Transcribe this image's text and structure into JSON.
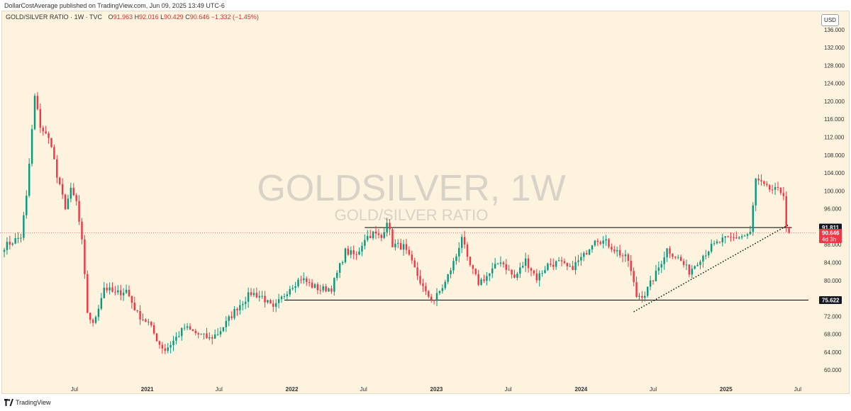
{
  "publisher_line": "DollarCostAverage published on TradingView.com, Jun 09, 2025 13:49 UTC-6",
  "legend": {
    "symbol_line": "GOLD/SILVER RATIO · 1W · TVC",
    "open_label": "O",
    "open": "91.963",
    "high_label": "H",
    "high": "92.016",
    "low_label": "L",
    "low": "90.429",
    "close_label": "C",
    "close": "90.646",
    "change": "−1.332 (−1.45%)"
  },
  "currency": "USD",
  "watermark": {
    "symbol": "GOLDSILVER, 1W",
    "description": "GOLD/SILVER RATIO"
  },
  "footer": {
    "brand": "TradingView"
  },
  "colors": {
    "up": "#089981",
    "down": "#f23645",
    "background": "#fdf3de",
    "line": "#000000",
    "label_dark": "#131722",
    "label_current": "#f23645"
  },
  "chart_data": {
    "type": "candlestick",
    "title": "GOLD/SILVER RATIO",
    "interval": "1W",
    "x_ticks": [
      "Jul",
      "2021",
      "Jul",
      "2022",
      "Jul",
      "2023",
      "Jul",
      "2024",
      "Jul",
      "2025",
      "Jul"
    ],
    "y_ticks": [
      "136.000",
      "132.000",
      "128.000",
      "124.000",
      "120.000",
      "116.000",
      "112.000",
      "108.000",
      "104.000",
      "100.000",
      "96.000",
      "88.000",
      "84.000",
      "80.000",
      "76.000",
      "72.000",
      "68.000",
      "64.000",
      "60.000"
    ],
    "ylim": [
      57.5,
      138.5
    ],
    "grid": false,
    "waypoints": [
      [
        "2020-01-06",
        87.6
      ],
      [
        "2020-02-17",
        89.8
      ],
      [
        "2020-03-02",
        98.5
      ],
      [
        "2020-03-16",
        113.5
      ],
      [
        "2020-03-23",
        121.0
      ],
      [
        "2020-04-06",
        114.5
      ],
      [
        "2020-05-04",
        110.5
      ],
      [
        "2020-05-18",
        103.0
      ],
      [
        "2020-06-08",
        96.5
      ],
      [
        "2020-06-22",
        100.0
      ],
      [
        "2020-07-06",
        97.5
      ],
      [
        "2020-07-20",
        88.5
      ],
      [
        "2020-08-03",
        73.0
      ],
      [
        "2020-08-17",
        70.0
      ],
      [
        "2020-09-14",
        78.5
      ],
      [
        "2020-10-12",
        77.0
      ],
      [
        "2020-11-09",
        77.8
      ],
      [
        "2020-12-07",
        72.5
      ],
      [
        "2021-01-04",
        70.5
      ],
      [
        "2021-02-01",
        65.8
      ],
      [
        "2021-02-15",
        64.5
      ],
      [
        "2021-03-08",
        66.5
      ],
      [
        "2021-04-05",
        69.5
      ],
      [
        "2021-05-03",
        68.2
      ],
      [
        "2021-06-07",
        67.0
      ],
      [
        "2021-06-28",
        68.2
      ],
      [
        "2021-07-19",
        70.5
      ],
      [
        "2021-08-16",
        74.0
      ],
      [
        "2021-09-20",
        77.2
      ],
      [
        "2021-10-18",
        76.4
      ],
      [
        "2021-11-15",
        73.5
      ],
      [
        "2021-12-06",
        76.0
      ],
      [
        "2021-12-27",
        78.5
      ],
      [
        "2022-01-24",
        80.5
      ],
      [
        "2022-02-21",
        78.8
      ],
      [
        "2022-03-14",
        78.0
      ],
      [
        "2022-04-11",
        78.3
      ],
      [
        "2022-04-25",
        81.5
      ],
      [
        "2022-05-16",
        86.5
      ],
      [
        "2022-06-13",
        85.5
      ],
      [
        "2022-07-04",
        89.5
      ],
      [
        "2022-07-25",
        90.5
      ],
      [
        "2022-08-15",
        89.5
      ],
      [
        "2022-08-29",
        93.5
      ],
      [
        "2022-09-12",
        88.0
      ],
      [
        "2022-10-10",
        87.5
      ],
      [
        "2022-11-07",
        82.5
      ],
      [
        "2022-12-05",
        77.0
      ],
      [
        "2022-12-26",
        75.6
      ],
      [
        "2023-01-23",
        79.5
      ],
      [
        "2023-02-20",
        85.5
      ],
      [
        "2023-03-06",
        90.0
      ],
      [
        "2023-03-20",
        84.5
      ],
      [
        "2023-04-17",
        79.5
      ],
      [
        "2023-05-15",
        81.5
      ],
      [
        "2023-06-12",
        84.5
      ],
      [
        "2023-07-17",
        80.5
      ],
      [
        "2023-08-14",
        84.5
      ],
      [
        "2023-09-11",
        80.5
      ],
      [
        "2023-10-09",
        83.5
      ],
      [
        "2023-11-06",
        84.0
      ],
      [
        "2023-12-04",
        82.5
      ],
      [
        "2024-01-08",
        85.5
      ],
      [
        "2024-02-05",
        89.5
      ],
      [
        "2024-03-04",
        88.5
      ],
      [
        "2024-04-01",
        86.5
      ],
      [
        "2024-04-29",
        84.5
      ],
      [
        "2024-05-20",
        76.5
      ],
      [
        "2024-06-10",
        77.0
      ],
      [
        "2024-07-08",
        81.5
      ],
      [
        "2024-08-05",
        87.0
      ],
      [
        "2024-09-02",
        85.0
      ],
      [
        "2024-09-30",
        82.0
      ],
      [
        "2024-10-28",
        85.0
      ],
      [
        "2024-11-25",
        87.5
      ],
      [
        "2024-12-23",
        89.0
      ],
      [
        "2025-01-20",
        89.5
      ],
      [
        "2025-02-17",
        90.0
      ],
      [
        "2025-03-03",
        90.5
      ],
      [
        "2025-03-17",
        102.5
      ],
      [
        "2025-04-14",
        100.5
      ],
      [
        "2025-05-12",
        100.0
      ],
      [
        "2025-05-26",
        99.5
      ],
      [
        "2025-06-02",
        91.96
      ]
    ],
    "last_candle": {
      "date": "2025-06-09",
      "open": 91.963,
      "high": 92.016,
      "low": 90.429,
      "close": 90.646
    },
    "annotations": {
      "resistance": {
        "value": 91.811,
        "label": "91.811",
        "from": "2022-07-04",
        "to": "2025-06-16"
      },
      "support": {
        "value": 75.622,
        "label": "75.622",
        "from": "2021-12-13",
        "to": "2025-07-28"
      },
      "trendline": {
        "from": [
          "2024-05-13",
          73.0
        ],
        "to": [
          "2025-06-09",
          92.5
        ],
        "style": "dotted"
      },
      "current_price": {
        "value": 90.646,
        "label": "90.646",
        "countdown": "4d 3h"
      }
    }
  }
}
